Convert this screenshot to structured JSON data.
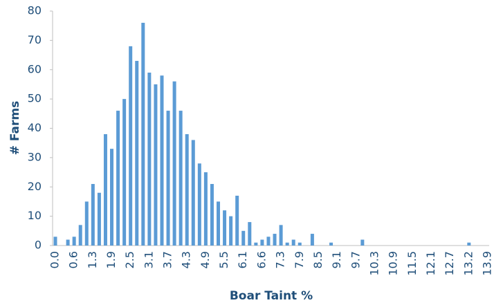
{
  "chart_data": {
    "type": "bar",
    "x_label": "Boar Taint %",
    "y_label": "# Farms",
    "categories": [
      "0.0",
      null,
      null,
      "0.6",
      null,
      null,
      "1.3",
      null,
      null,
      "1.9",
      null,
      null,
      "2.5",
      null,
      null,
      "3.1",
      null,
      null,
      "3.7",
      null,
      null,
      "4.3",
      null,
      null,
      "4.9",
      null,
      null,
      "5.5",
      null,
      null,
      "6.1",
      null,
      null,
      "6.6",
      null,
      null,
      "7.3",
      null,
      null,
      "7.9",
      null,
      null,
      "8.5",
      null,
      null,
      "9.1",
      null,
      null,
      "9.7",
      null,
      null,
      "10.3",
      null,
      null,
      "10.9",
      null,
      null,
      "11.5",
      null,
      null,
      "12.1",
      null,
      null,
      "12.7",
      null,
      null,
      "13.2",
      null,
      null,
      "13.9"
    ],
    "values": [
      3,
      0,
      2,
      3,
      7,
      15,
      21,
      18,
      38,
      33,
      46,
      50,
      68,
      63,
      76,
      59,
      55,
      58,
      46,
      56,
      46,
      38,
      36,
      28,
      25,
      21,
      15,
      12,
      10,
      17,
      5,
      8,
      1,
      2,
      3,
      4,
      7,
      1,
      2,
      1,
      0,
      4,
      0,
      0,
      1,
      0,
      0,
      0,
      0,
      2,
      0,
      0,
      0,
      0,
      0,
      0,
      0,
      0,
      0,
      0,
      0,
      0,
      0,
      0,
      0,
      0,
      1,
      0,
      0,
      0
    ],
    "color": "#5b9bd5",
    "ylim": [
      0,
      80
    ],
    "yticks": [
      0,
      10,
      20,
      30,
      40,
      50,
      60,
      70,
      80
    ],
    "grid": false
  }
}
